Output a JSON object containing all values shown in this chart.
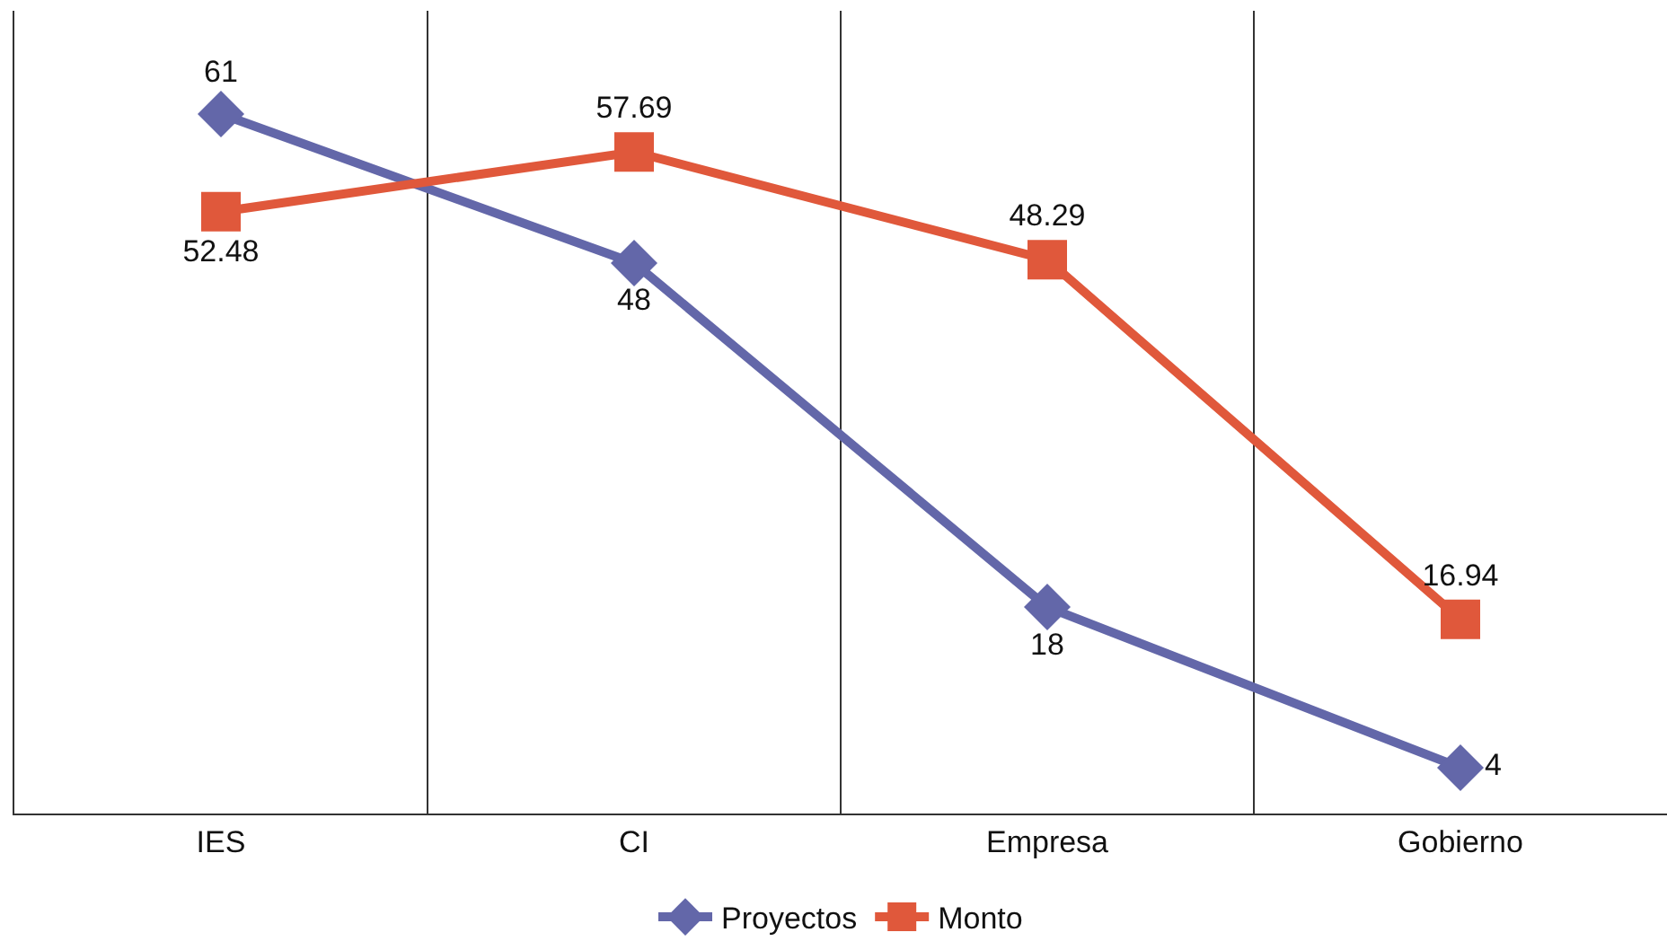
{
  "chart_data": {
    "type": "line",
    "categories": [
      "IES",
      "CI",
      "Empresa",
      "Gobierno"
    ],
    "series": [
      {
        "name": "Proyectos",
        "color": "#6367a9",
        "marker": "diamond",
        "values": [
          61,
          48,
          18,
          4
        ]
      },
      {
        "name": "Monto",
        "color": "#e0583b",
        "marker": "square",
        "values": [
          52.48,
          57.69,
          48.29,
          16.94
        ]
      }
    ],
    "ylim": [
      0,
      70
    ],
    "data_labels": true,
    "grid": "x",
    "legend": "bottom",
    "tick_labels": "x",
    "line_style": "solid"
  }
}
